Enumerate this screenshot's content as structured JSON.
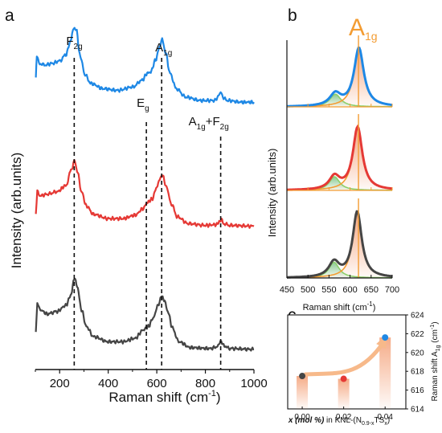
{
  "panels": {
    "a": "a",
    "b": "b",
    "c": "c"
  },
  "colors": {
    "blue": "#1e88e5",
    "red": "#e53935",
    "gray": "#454545",
    "orange": "#f39c32",
    "green": "#2e9e3a",
    "light_green": "#8ccf6a",
    "peach": "#f4a27a"
  },
  "chart_data": [
    {
      "id": "a",
      "type": "line",
      "xlabel": "Raman shift (cm",
      "xlabel_sup": "-1",
      "xlabel_tail": ")",
      "ylabel": "Intensity (arb.units)",
      "xlim": [
        100,
        1000
      ],
      "xticks": [
        "200",
        "400",
        "600",
        "800",
        "1000"
      ],
      "xtick_values": [
        200,
        400,
        600,
        800,
        1000
      ],
      "peak_markers": [
        260,
        557,
        620,
        863
      ],
      "peak_labels": [
        {
          "main": "F",
          "sub": "2g",
          "x": 260
        },
        {
          "main": "E",
          "sub": "g",
          "x": 557
        },
        {
          "main": "A",
          "sub": "1g",
          "x": 620
        },
        {
          "main": "A",
          "sub": "1g",
          "extra": "+F",
          "extra_sub": "2g",
          "x": 863
        }
      ],
      "series": [
        {
          "color": "#1e88e5",
          "offset": 2.0,
          "points": [
            [
              102,
              0.35
            ],
            [
              106,
              0.62
            ],
            [
              115,
              0.52
            ],
            [
              140,
              0.5
            ],
            [
              170,
              0.52
            ],
            [
              200,
              0.55
            ],
            [
              225,
              0.62
            ],
            [
              245,
              0.78
            ],
            [
              258,
              0.95
            ],
            [
              268,
              0.92
            ],
            [
              285,
              0.6
            ],
            [
              305,
              0.38
            ],
            [
              330,
              0.28
            ],
            [
              380,
              0.22
            ],
            [
              440,
              0.2
            ],
            [
              500,
              0.24
            ],
            [
              540,
              0.32
            ],
            [
              560,
              0.4
            ],
            [
              575,
              0.42
            ],
            [
              595,
              0.56
            ],
            [
              612,
              0.72
            ],
            [
              622,
              0.8
            ],
            [
              635,
              0.66
            ],
            [
              655,
              0.4
            ],
            [
              680,
              0.22
            ],
            [
              720,
              0.12
            ],
            [
              780,
              0.08
            ],
            [
              840,
              0.08
            ],
            [
              855,
              0.14
            ],
            [
              863,
              0.18
            ],
            [
              872,
              0.12
            ],
            [
              890,
              0.08
            ],
            [
              950,
              0.06
            ],
            [
              1000,
              0.06
            ]
          ]
        },
        {
          "color": "#e53935",
          "offset": 1.0,
          "points": [
            [
              102,
              0.2
            ],
            [
              108,
              0.45
            ],
            [
              120,
              0.4
            ],
            [
              150,
              0.42
            ],
            [
              190,
              0.45
            ],
            [
              225,
              0.52
            ],
            [
              250,
              0.72
            ],
            [
              260,
              0.82
            ],
            [
              272,
              0.7
            ],
            [
              290,
              0.45
            ],
            [
              310,
              0.28
            ],
            [
              340,
              0.18
            ],
            [
              400,
              0.13
            ],
            [
              460,
              0.13
            ],
            [
              510,
              0.17
            ],
            [
              545,
              0.25
            ],
            [
              560,
              0.32
            ],
            [
              580,
              0.36
            ],
            [
              600,
              0.5
            ],
            [
              615,
              0.62
            ],
            [
              625,
              0.63
            ],
            [
              640,
              0.5
            ],
            [
              660,
              0.3
            ],
            [
              685,
              0.15
            ],
            [
              730,
              0.07
            ],
            [
              800,
              0.05
            ],
            [
              850,
              0.06
            ],
            [
              860,
              0.11
            ],
            [
              866,
              0.12
            ],
            [
              875,
              0.07
            ],
            [
              900,
              0.05
            ],
            [
              1000,
              0.04
            ]
          ]
        },
        {
          "color": "#454545",
          "offset": 0.0,
          "points": [
            [
              102,
              0.25
            ],
            [
              108,
              0.58
            ],
            [
              118,
              0.5
            ],
            [
              150,
              0.45
            ],
            [
              190,
              0.48
            ],
            [
              225,
              0.55
            ],
            [
              248,
              0.68
            ],
            [
              260,
              0.88
            ],
            [
              272,
              0.78
            ],
            [
              290,
              0.5
            ],
            [
              310,
              0.3
            ],
            [
              340,
              0.18
            ],
            [
              400,
              0.12
            ],
            [
              460,
              0.12
            ],
            [
              510,
              0.16
            ],
            [
              545,
              0.26
            ],
            [
              565,
              0.3
            ],
            [
              585,
              0.4
            ],
            [
              605,
              0.55
            ],
            [
              618,
              0.66
            ],
            [
              630,
              0.62
            ],
            [
              645,
              0.48
            ],
            [
              665,
              0.28
            ],
            [
              690,
              0.12
            ],
            [
              740,
              0.05
            ],
            [
              820,
              0.04
            ],
            [
              850,
              0.06
            ],
            [
              862,
              0.13
            ],
            [
              872,
              0.08
            ],
            [
              900,
              0.04
            ],
            [
              1000,
              0.03
            ]
          ]
        }
      ]
    },
    {
      "id": "b",
      "type": "area",
      "title": "A",
      "title_sub": "1g",
      "xlabel": "Raman shift (cm",
      "xlabel_sup": "-1",
      "xlabel_tail": ")",
      "ylabel": "Intensity (arb.units)",
      "xlim": [
        450,
        700
      ],
      "xticks": [
        "450",
        "500",
        "550",
        "600",
        "650",
        "700"
      ],
      "xtick_values": [
        450,
        500,
        550,
        600,
        650,
        700
      ],
      "peak_marker": 620,
      "subpanels": [
        {
          "envelope_color": "#1e88e5",
          "main_center": 621,
          "main_height": 1.0,
          "main_width": 28,
          "side_center": 565,
          "side_height": 0.2,
          "side_width": 32
        },
        {
          "envelope_color": "#e53935",
          "main_center": 618,
          "main_height": 1.0,
          "main_width": 27,
          "side_center": 563,
          "side_height": 0.2,
          "side_width": 30
        },
        {
          "envelope_color": "#454545",
          "main_center": 617,
          "main_height": 1.0,
          "main_width": 26,
          "side_center": 562,
          "side_height": 0.22,
          "side_width": 30
        }
      ]
    },
    {
      "id": "c",
      "type": "scatter",
      "xlabel_parts": [
        "x (mol %)",
        " in KNL-(N",
        "0.9-x",
        "TS",
        "x",
        ")"
      ],
      "ylabel": "Raman shift A",
      "ylabel_sub": "1g",
      "ylabel_tail": " (cm",
      "ylabel_sup": "-1",
      "ylabel_end": ")",
      "xlim": [
        -0.007,
        0.05
      ],
      "ylim": [
        614,
        624
      ],
      "xticks": [
        "0.00",
        "0.02",
        "0.04"
      ],
      "xtick_values": [
        0.0,
        0.02,
        0.04
      ],
      "yticks": [
        "614",
        "616",
        "618",
        "620",
        "622",
        "624"
      ],
      "ytick_values": [
        614,
        616,
        618,
        620,
        622,
        624
      ],
      "points": [
        {
          "x": 0.0,
          "y": 617.5,
          "color": "#454545"
        },
        {
          "x": 0.02,
          "y": 617.2,
          "color": "#e53935"
        },
        {
          "x": 0.04,
          "y": 621.6,
          "color": "#1e88e5"
        }
      ]
    }
  ]
}
